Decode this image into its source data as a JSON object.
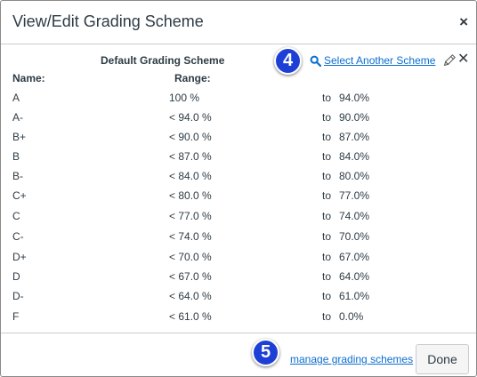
{
  "dialog": {
    "title": "View/Edit Grading Scheme",
    "close_symbol": "×"
  },
  "scheme": {
    "name": "Default Grading Scheme",
    "name_header": "Name:",
    "range_header": "Range:",
    "select_link": "Select Another Scheme",
    "remove_symbol": "✕",
    "rows": [
      {
        "name": "A",
        "min": "100 %",
        "to": "to",
        "max": "94.0%"
      },
      {
        "name": "A-",
        "min": "< 94.0 %",
        "to": "to",
        "max": "90.0%"
      },
      {
        "name": "B+",
        "min": "< 90.0 %",
        "to": "to",
        "max": "87.0%"
      },
      {
        "name": "B",
        "min": "< 87.0 %",
        "to": "to",
        "max": "84.0%"
      },
      {
        "name": "B-",
        "min": "< 84.0 %",
        "to": "to",
        "max": "80.0%"
      },
      {
        "name": "C+",
        "min": "< 80.0 %",
        "to": "to",
        "max": "77.0%"
      },
      {
        "name": "C",
        "min": "< 77.0 %",
        "to": "to",
        "max": "74.0%"
      },
      {
        "name": "C-",
        "min": "< 74.0 %",
        "to": "to",
        "max": "70.0%"
      },
      {
        "name": "D+",
        "min": "< 70.0 %",
        "to": "to",
        "max": "67.0%"
      },
      {
        "name": "D",
        "min": "< 67.0 %",
        "to": "to",
        "max": "64.0%"
      },
      {
        "name": "D-",
        "min": "< 64.0 %",
        "to": "to",
        "max": "61.0%"
      },
      {
        "name": "F",
        "min": "< 61.0 %",
        "to": "to",
        "max": "0.0%"
      }
    ]
  },
  "callouts": {
    "step4": "4",
    "step5": "5"
  },
  "footer": {
    "manage_link": "manage grading schemes",
    "done_label": "Done"
  },
  "icons": {
    "search": "search-icon",
    "pencil": "pencil-icon",
    "remove": "close-icon"
  },
  "colors": {
    "link": "#0b6ed0",
    "callout": "#1e3fd6",
    "text": "#2d3b45"
  }
}
